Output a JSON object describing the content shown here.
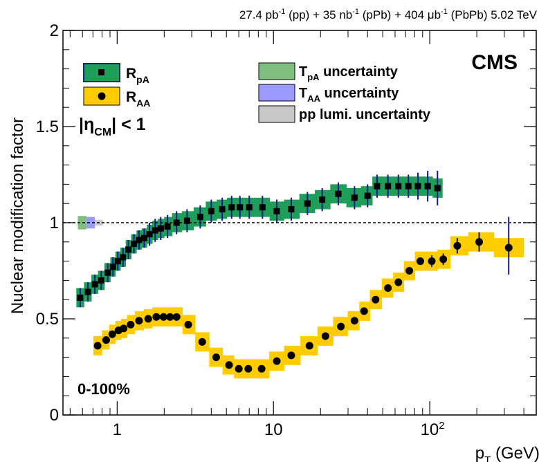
{
  "chart_data": {
    "type": "scatter",
    "header": {
      "p1": "27.4 pb",
      "s1": "-1",
      "p2": " (pp) + 35 nb",
      "s2": "-1",
      "p3": " (pPb) + 404 μb",
      "s3": "-1",
      "p4": " (PbPb) 5.02 TeV"
    },
    "experiment": "CMS",
    "centrality": "0-100%",
    "ylabel": "Nuclear modification factor",
    "xlabel": {
      "main": "p",
      "sub": "T",
      "unit": " (GeV)"
    },
    "x_scale": "log",
    "xlim": [
      0.45,
      480
    ],
    "ylim": [
      0,
      2
    ],
    "reference_line": 1,
    "x_ticks": [
      {
        "value": 1,
        "label": "1"
      },
      {
        "value": 10,
        "label": "10"
      },
      {
        "value": 100,
        "label": "10",
        "sup": "2"
      }
    ],
    "y_ticks": [
      {
        "value": 0,
        "label": "0"
      },
      {
        "value": 0.5,
        "label": "0.5"
      },
      {
        "value": 1,
        "label": "1"
      },
      {
        "value": 1.5,
        "label": "1.5"
      },
      {
        "value": 2,
        "label": "2"
      }
    ],
    "eta_label": {
      "pre": "|η",
      "sub": "CM",
      "post": "| < 1"
    },
    "legend_series": [
      {
        "main": "R",
        "sub": "pA"
      },
      {
        "main": "R",
        "sub": "AA"
      }
    ],
    "legend_unc": [
      {
        "main": "T",
        "sub": "pA",
        "rest": " uncertainty"
      },
      {
        "main": "T",
        "sub": "AA",
        "rest": " uncertainty"
      },
      {
        "main": "pp lumi. uncertainty",
        "sub": "",
        "rest": ""
      }
    ],
    "colors": {
      "rpa_band": "#1e9e58",
      "rpa_band_edge": "#0a2a8c",
      "raa_band": "#ffcc00",
      "marker": "#000000",
      "stat_error": "#0a1a8c",
      "tpa_unc": "#7fbf7f",
      "taa_unc": "#9a9aff",
      "lumi_unc": "#c8c8c8"
    },
    "norm_boxes": [
      {
        "name": "tpa",
        "x_lo": 0.56,
        "x_hi": 0.635,
        "lo": 0.965,
        "hi": 1.035
      },
      {
        "name": "taa",
        "x_lo": 0.635,
        "x_hi": 0.72,
        "lo": 0.97,
        "hi": 1.03
      },
      {
        "name": "lumi",
        "x_lo": 0.72,
        "x_hi": 0.81,
        "lo": 0.985,
        "hi": 1.015
      }
    ],
    "series": [
      {
        "name": "RpA",
        "marker": "square",
        "band_height": 0.1,
        "points": [
          {
            "x": 0.58,
            "y": 0.61,
            "lo": 0.56,
            "hi": 0.66
          },
          {
            "x": 0.65,
            "y": 0.64,
            "lo": 0.59,
            "hi": 0.69
          },
          {
            "x": 0.72,
            "y": 0.68,
            "lo": 0.63,
            "hi": 0.73
          },
          {
            "x": 0.79,
            "y": 0.7,
            "lo": 0.65,
            "hi": 0.75
          },
          {
            "x": 0.87,
            "y": 0.74,
            "lo": 0.69,
            "hi": 0.79
          },
          {
            "x": 0.94,
            "y": 0.77,
            "lo": 0.72,
            "hi": 0.82
          },
          {
            "x": 1.01,
            "y": 0.8,
            "lo": 0.75,
            "hi": 0.85
          },
          {
            "x": 1.09,
            "y": 0.82,
            "lo": 0.77,
            "hi": 0.87
          },
          {
            "x": 1.18,
            "y": 0.86,
            "lo": 0.81,
            "hi": 0.91
          },
          {
            "x": 1.28,
            "y": 0.89,
            "lo": 0.84,
            "hi": 0.94
          },
          {
            "x": 1.38,
            "y": 0.91,
            "lo": 0.86,
            "hi": 0.96
          },
          {
            "x": 1.49,
            "y": 0.92,
            "lo": 0.87,
            "hi": 0.97
          },
          {
            "x": 1.61,
            "y": 0.94,
            "lo": 0.88,
            "hi": 1.0
          },
          {
            "x": 1.75,
            "y": 0.96,
            "lo": 0.9,
            "hi": 1.02
          },
          {
            "x": 1.9,
            "y": 0.97,
            "lo": 0.91,
            "hi": 1.03
          },
          {
            "x": 2.1,
            "y": 0.98,
            "lo": 0.92,
            "hi": 1.04
          },
          {
            "x": 2.4,
            "y": 1.0,
            "lo": 0.94,
            "hi": 1.06
          },
          {
            "x": 2.8,
            "y": 1.01,
            "lo": 0.95,
            "hi": 1.07
          },
          {
            "x": 3.4,
            "y": 1.03,
            "lo": 0.97,
            "hi": 1.09
          },
          {
            "x": 4.0,
            "y": 1.06,
            "lo": 1.0,
            "hi": 1.12
          },
          {
            "x": 4.7,
            "y": 1.07,
            "lo": 1.01,
            "hi": 1.13
          },
          {
            "x": 5.4,
            "y": 1.08,
            "lo": 1.02,
            "hi": 1.14
          },
          {
            "x": 6.1,
            "y": 1.08,
            "lo": 1.02,
            "hi": 1.14
          },
          {
            "x": 7.0,
            "y": 1.08,
            "lo": 1.02,
            "hi": 1.14
          },
          {
            "x": 8.5,
            "y": 1.08,
            "lo": 1.02,
            "hi": 1.14
          },
          {
            "x": 10.5,
            "y": 1.06,
            "lo": 1.0,
            "hi": 1.12
          },
          {
            "x": 13.0,
            "y": 1.07,
            "lo": 1.01,
            "hi": 1.13
          },
          {
            "x": 16.5,
            "y": 1.1,
            "lo": 1.04,
            "hi": 1.16
          },
          {
            "x": 20.5,
            "y": 1.12,
            "lo": 1.06,
            "hi": 1.18
          },
          {
            "x": 26.0,
            "y": 1.15,
            "lo": 1.09,
            "hi": 1.21
          },
          {
            "x": 33.0,
            "y": 1.13,
            "lo": 1.07,
            "hi": 1.19
          },
          {
            "x": 40.0,
            "y": 1.14,
            "lo": 1.08,
            "hi": 1.2
          },
          {
            "x": 46.0,
            "y": 1.19,
            "lo": 1.13,
            "hi": 1.25
          },
          {
            "x": 54.0,
            "y": 1.19,
            "lo": 1.13,
            "hi": 1.25
          },
          {
            "x": 63.0,
            "y": 1.19,
            "lo": 1.13,
            "hi": 1.25
          },
          {
            "x": 73.0,
            "y": 1.19,
            "lo": 1.13,
            "hi": 1.25
          },
          {
            "x": 84.0,
            "y": 1.19,
            "lo": 1.12,
            "hi": 1.26
          },
          {
            "x": 97.0,
            "y": 1.19,
            "lo": 1.11,
            "hi": 1.27
          },
          {
            "x": 112,
            "y": 1.18,
            "lo": 1.09,
            "hi": 1.27
          }
        ]
      },
      {
        "name": "RAA",
        "marker": "circle",
        "band_height": 0.1,
        "points": [
          {
            "x": 0.75,
            "y": 0.36,
            "lo": 0.35,
            "hi": 0.37
          },
          {
            "x": 0.85,
            "y": 0.39,
            "lo": 0.38,
            "hi": 0.4
          },
          {
            "x": 0.93,
            "y": 0.42,
            "lo": 0.41,
            "hi": 0.43
          },
          {
            "x": 1.02,
            "y": 0.44,
            "lo": 0.43,
            "hi": 0.45
          },
          {
            "x": 1.1,
            "y": 0.45,
            "lo": 0.44,
            "hi": 0.46
          },
          {
            "x": 1.22,
            "y": 0.47,
            "lo": 0.46,
            "hi": 0.48
          },
          {
            "x": 1.38,
            "y": 0.49,
            "lo": 0.48,
            "hi": 0.5
          },
          {
            "x": 1.58,
            "y": 0.5,
            "lo": 0.49,
            "hi": 0.51
          },
          {
            "x": 1.78,
            "y": 0.51,
            "lo": 0.5,
            "hi": 0.52
          },
          {
            "x": 1.98,
            "y": 0.51,
            "lo": 0.5,
            "hi": 0.52
          },
          {
            "x": 2.18,
            "y": 0.51,
            "lo": 0.5,
            "hi": 0.52
          },
          {
            "x": 2.4,
            "y": 0.51,
            "lo": 0.5,
            "hi": 0.52
          },
          {
            "x": 2.85,
            "y": 0.47,
            "lo": 0.46,
            "hi": 0.48
          },
          {
            "x": 3.5,
            "y": 0.38,
            "lo": 0.37,
            "hi": 0.39
          },
          {
            "x": 4.3,
            "y": 0.3,
            "lo": 0.29,
            "hi": 0.31
          },
          {
            "x": 5.2,
            "y": 0.26,
            "lo": 0.25,
            "hi": 0.27
          },
          {
            "x": 6.0,
            "y": 0.24,
            "lo": 0.23,
            "hi": 0.25
          },
          {
            "x": 6.9,
            "y": 0.24,
            "lo": 0.23,
            "hi": 0.25
          },
          {
            "x": 8.4,
            "y": 0.24,
            "lo": 0.23,
            "hi": 0.25
          },
          {
            "x": 10.5,
            "y": 0.28,
            "lo": 0.27,
            "hi": 0.29
          },
          {
            "x": 13.0,
            "y": 0.31,
            "lo": 0.3,
            "hi": 0.32
          },
          {
            "x": 17.0,
            "y": 0.36,
            "lo": 0.35,
            "hi": 0.37
          },
          {
            "x": 21.5,
            "y": 0.41,
            "lo": 0.4,
            "hi": 0.42
          },
          {
            "x": 27.0,
            "y": 0.46,
            "lo": 0.45,
            "hi": 0.47
          },
          {
            "x": 33.0,
            "y": 0.49,
            "lo": 0.48,
            "hi": 0.5
          },
          {
            "x": 38.0,
            "y": 0.54,
            "lo": 0.53,
            "hi": 0.55
          },
          {
            "x": 45.0,
            "y": 0.6,
            "lo": 0.59,
            "hi": 0.61
          },
          {
            "x": 54.0,
            "y": 0.66,
            "lo": 0.64,
            "hi": 0.68
          },
          {
            "x": 63.0,
            "y": 0.69,
            "lo": 0.67,
            "hi": 0.71
          },
          {
            "x": 74.0,
            "y": 0.75,
            "lo": 0.73,
            "hi": 0.77
          },
          {
            "x": 87.0,
            "y": 0.8,
            "lo": 0.78,
            "hi": 0.82
          },
          {
            "x": 103,
            "y": 0.8,
            "lo": 0.77,
            "hi": 0.83
          },
          {
            "x": 122,
            "y": 0.81,
            "lo": 0.78,
            "hi": 0.84
          },
          {
            "x": 150,
            "y": 0.88,
            "lo": 0.84,
            "hi": 0.92
          },
          {
            "x": 207,
            "y": 0.9,
            "lo": 0.85,
            "hi": 0.95
          },
          {
            "x": 320,
            "y": 0.87,
            "lo": 0.73,
            "hi": 1.03
          }
        ]
      }
    ]
  }
}
